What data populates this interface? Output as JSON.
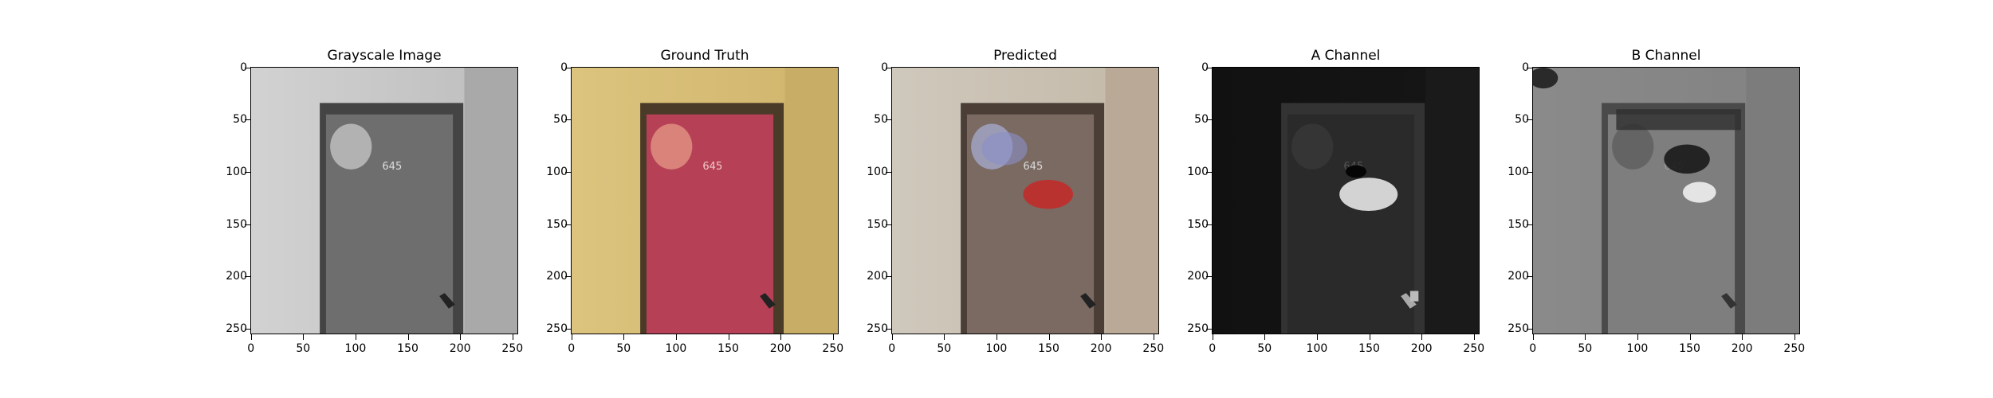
{
  "panels": [
    {
      "title": "Grayscale Image",
      "kind": "gray"
    },
    {
      "title": "Ground Truth",
      "kind": "truth"
    },
    {
      "title": "Predicted",
      "kind": "pred"
    },
    {
      "title": "A Channel",
      "kind": "a"
    },
    {
      "title": "B Channel",
      "kind": "b"
    }
  ],
  "door_number": "645",
  "yticks": [
    "0",
    "50",
    "100",
    "150",
    "200",
    "250"
  ],
  "xticks": [
    "0",
    "50",
    "100",
    "150",
    "200",
    "250"
  ],
  "image_extent": 256
}
